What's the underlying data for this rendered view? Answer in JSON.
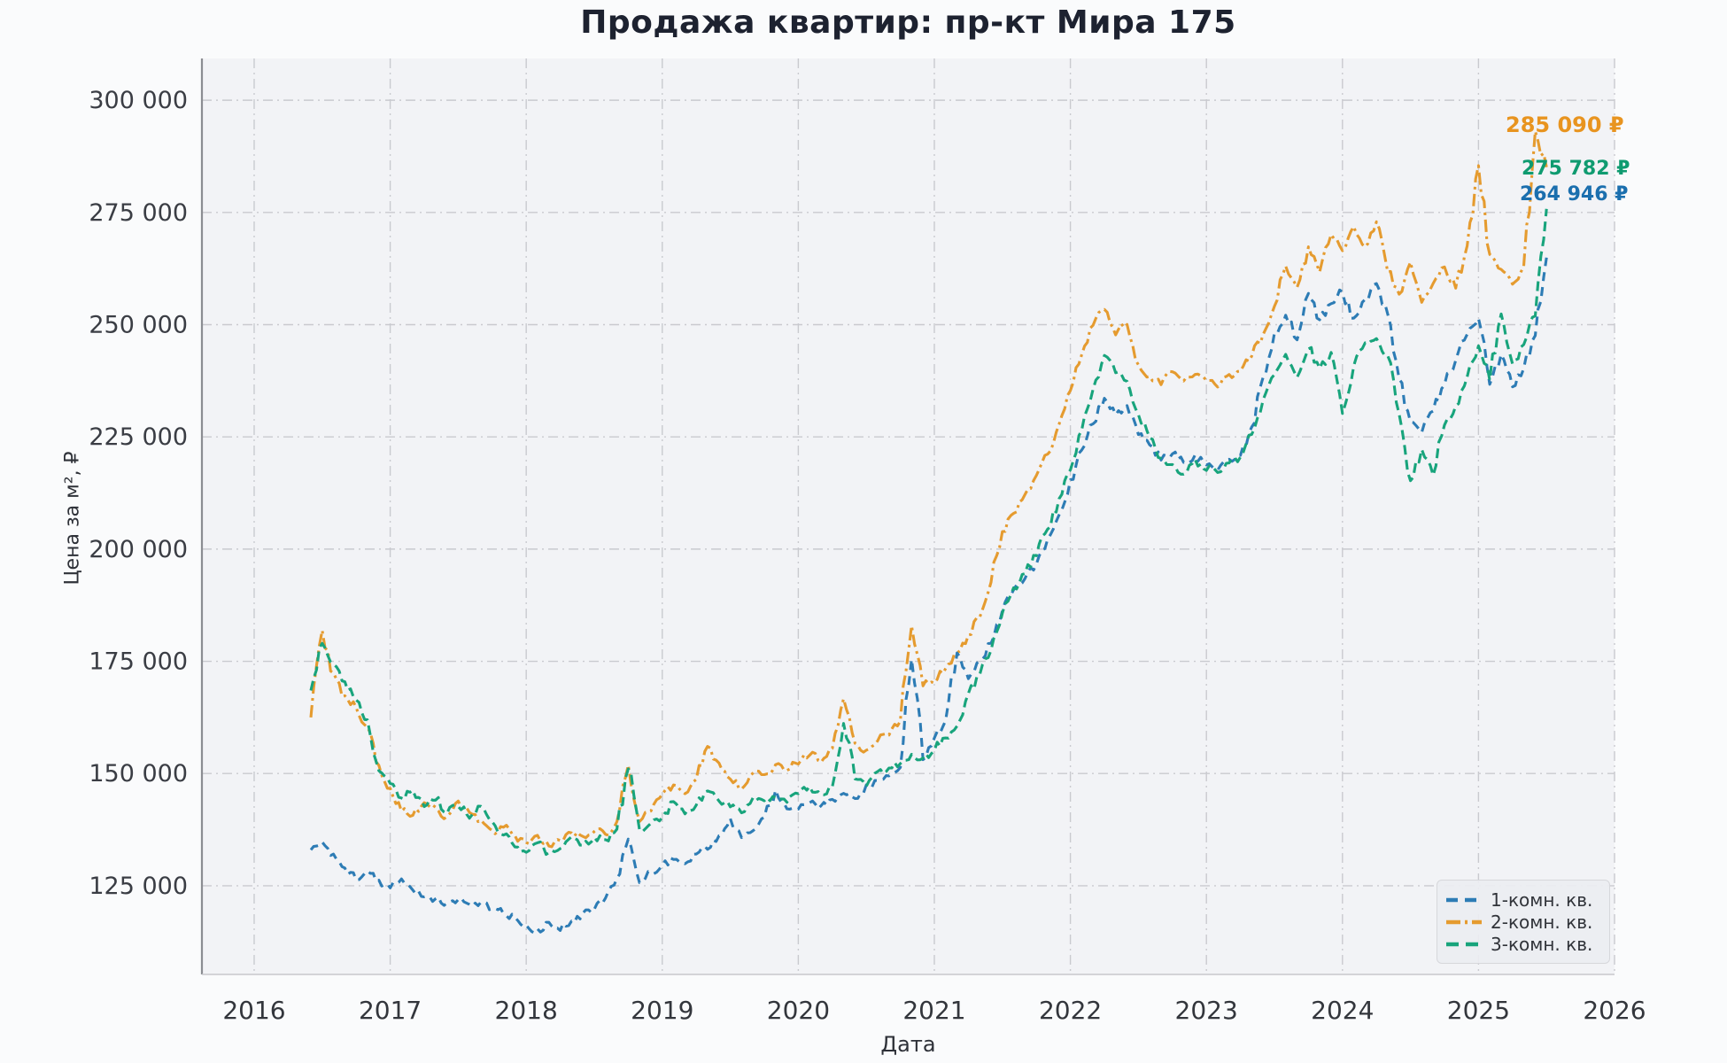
{
  "page": {
    "background": "#fafbfc",
    "plot_background": "#f2f3f6",
    "grid_color": "#c9cacf",
    "spine_color": "#8b8d92"
  },
  "chart_data": {
    "type": "line",
    "title": "Продажа квартир: пр-кт Мира 175",
    "xlabel": "Дата",
    "ylabel": "Цена за м², ₽",
    "grid": true,
    "legend_position": "lower right",
    "xlim": [
      2015.616,
      2026.0
    ],
    "ylim": [
      105250,
      309300
    ],
    "x_ticks": [
      {
        "value": 2016,
        "label": "2016"
      },
      {
        "value": 2017,
        "label": "2017"
      },
      {
        "value": 2018,
        "label": "2018"
      },
      {
        "value": 2019,
        "label": "2019"
      },
      {
        "value": 2020,
        "label": "2020"
      },
      {
        "value": 2021,
        "label": "2021"
      },
      {
        "value": 2022,
        "label": "2022"
      },
      {
        "value": 2023,
        "label": "2023"
      },
      {
        "value": 2024,
        "label": "2024"
      },
      {
        "value": 2025,
        "label": "2025"
      },
      {
        "value": 2026,
        "label": "2026"
      }
    ],
    "y_ticks": [
      {
        "value": 125000,
        "label": "125 000"
      },
      {
        "value": 150000,
        "label": "150 000"
      },
      {
        "value": 175000,
        "label": "175 000"
      },
      {
        "value": 200000,
        "label": "200 000"
      },
      {
        "value": 225000,
        "label": "225 000"
      },
      {
        "value": 250000,
        "label": "250 000"
      },
      {
        "value": 275000,
        "label": "275 000"
      },
      {
        "value": 300000,
        "label": "300 000"
      }
    ],
    "x": [
      2016.417,
      2016.5,
      2016.583,
      2016.667,
      2016.75,
      2016.833,
      2016.917,
      2017,
      2017.083,
      2017.167,
      2017.25,
      2017.333,
      2017.417,
      2017.5,
      2017.583,
      2017.667,
      2017.75,
      2017.833,
      2017.917,
      2018,
      2018.083,
      2018.167,
      2018.25,
      2018.333,
      2018.417,
      2018.5,
      2018.583,
      2018.667,
      2018.75,
      2018.833,
      2018.917,
      2019,
      2019.083,
      2019.167,
      2019.25,
      2019.333,
      2019.417,
      2019.5,
      2019.583,
      2019.667,
      2019.75,
      2019.833,
      2019.917,
      2020,
      2020.083,
      2020.167,
      2020.25,
      2020.333,
      2020.417,
      2020.5,
      2020.583,
      2020.667,
      2020.75,
      2020.833,
      2020.917,
      2021,
      2021.083,
      2021.167,
      2021.25,
      2021.333,
      2021.417,
      2021.5,
      2021.583,
      2021.667,
      2021.75,
      2021.833,
      2021.917,
      2022,
      2022.083,
      2022.167,
      2022.25,
      2022.333,
      2022.417,
      2022.5,
      2022.583,
      2022.667,
      2022.75,
      2022.833,
      2022.917,
      2023,
      2023.083,
      2023.167,
      2023.25,
      2023.333,
      2023.417,
      2023.5,
      2023.583,
      2023.667,
      2023.75,
      2023.833,
      2023.917,
      2024,
      2024.083,
      2024.167,
      2024.25,
      2024.333,
      2024.417,
      2024.5,
      2024.583,
      2024.667,
      2024.75,
      2024.833,
      2024.917,
      2025,
      2025.083,
      2025.167,
      2025.25,
      2025.333,
      2025.417,
      2025.5
    ],
    "series": [
      {
        "name": "1-комн. кв.",
        "color": "#2d7cb5",
        "dash": "10 7",
        "final_value_label": "264 946 ₽",
        "values": [
          133000,
          134500,
          132000,
          129000,
          126500,
          128000,
          126000,
          124500,
          126500,
          124000,
          123000,
          122000,
          121000,
          122000,
          120500,
          121500,
          120000,
          119000,
          117500,
          116000,
          115000,
          116500,
          115500,
          117000,
          118500,
          120000,
          122000,
          127000,
          135000,
          126000,
          128000,
          129500,
          131000,
          130000,
          132000,
          133500,
          136000,
          139500,
          136000,
          137500,
          140000,
          146000,
          142000,
          142500,
          143500,
          142500,
          144000,
          146000,
          144500,
          147000,
          148000,
          149500,
          151500,
          175500,
          153500,
          157500,
          162000,
          177000,
          171000,
          175000,
          179000,
          186500,
          190500,
          193000,
          197000,
          202000,
          208000,
          215000,
          222000,
          228000,
          233500,
          230000,
          232000,
          226000,
          223000,
          220000,
          221500,
          219000,
          220500,
          219000,
          218000,
          220000,
          221000,
          227000,
          238000,
          248000,
          252000,
          247000,
          257000,
          251000,
          255000,
          257500,
          251000,
          255500,
          259000,
          252000,
          238000,
          228000,
          226000,
          231000,
          236500,
          242500,
          248000,
          251000,
          237000,
          243000,
          236000,
          240000,
          248000,
          264946
        ]
      },
      {
        "name": "2-комн. кв.",
        "color": "#e59b2f",
        "dash": "14 5 3 5",
        "final_value_label": "285 090 ₽",
        "values": [
          162500,
          181500,
          172000,
          167000,
          164500,
          160000,
          152000,
          146500,
          142000,
          140500,
          144000,
          142500,
          140000,
          143500,
          141000,
          139500,
          137000,
          138500,
          136000,
          134500,
          136500,
          134000,
          135000,
          137000,
          135500,
          137500,
          136500,
          139000,
          152000,
          139500,
          142000,
          145500,
          147500,
          146000,
          149000,
          156000,
          152000,
          148500,
          147000,
          150500,
          149500,
          152000,
          151000,
          152500,
          154500,
          153000,
          155500,
          167000,
          156500,
          155000,
          157500,
          159000,
          161500,
          183000,
          170000,
          170500,
          173500,
          176500,
          181000,
          185000,
          193000,
          203500,
          208000,
          212000,
          216000,
          221500,
          228000,
          235000,
          243000,
          250000,
          253500,
          248000,
          250500,
          241000,
          238000,
          237000,
          239500,
          237000,
          239000,
          238000,
          236500,
          238500,
          239500,
          243000,
          248000,
          254000,
          263000,
          258000,
          267000,
          262000,
          270000,
          266000,
          272000,
          267500,
          272500,
          262000,
          257000,
          263500,
          255000,
          259000,
          262500,
          258500,
          268000,
          285500,
          266000,
          262000,
          259000,
          263000,
          293000,
          285090
        ]
      },
      {
        "name": "3-комн. кв.",
        "color": "#18a47c",
        "dash": "11 6",
        "final_value_label": "275 782 ₽",
        "values": [
          168500,
          179000,
          174500,
          170000,
          166000,
          161500,
          151000,
          147500,
          144500,
          146500,
          143000,
          144500,
          141500,
          143000,
          140500,
          142500,
          139000,
          136500,
          134000,
          132500,
          134500,
          132000,
          133500,
          135500,
          134000,
          136000,
          135000,
          137500,
          151500,
          137000,
          139000,
          140500,
          143500,
          141000,
          143000,
          146000,
          144000,
          143000,
          141500,
          144500,
          143500,
          145000,
          144000,
          145500,
          147000,
          145000,
          147500,
          161000,
          149000,
          147500,
          150000,
          151000,
          152500,
          154000,
          153000,
          155500,
          158000,
          161000,
          167500,
          172000,
          177500,
          186000,
          191000,
          194500,
          199000,
          204500,
          211000,
          218000,
          226000,
          236000,
          243000,
          239500,
          237000,
          230000,
          225000,
          220000,
          218500,
          217000,
          219500,
          218000,
          217500,
          219000,
          220500,
          226000,
          233000,
          238500,
          243000,
          238000,
          245000,
          240000,
          243500,
          230000,
          241000,
          245500,
          247000,
          243000,
          230000,
          215500,
          222000,
          216500,
          228000,
          231500,
          238000,
          245000,
          238000,
          252000,
          241000,
          245500,
          252000,
          275782
        ]
      }
    ],
    "annotations": [
      {
        "text": "285 090 ₽",
        "color": "#e8941f"
      },
      {
        "text": "275 782 ₽",
        "color": "#0f9b70"
      },
      {
        "text": "264 946 ₽",
        "color": "#1b6fae"
      }
    ]
  }
}
